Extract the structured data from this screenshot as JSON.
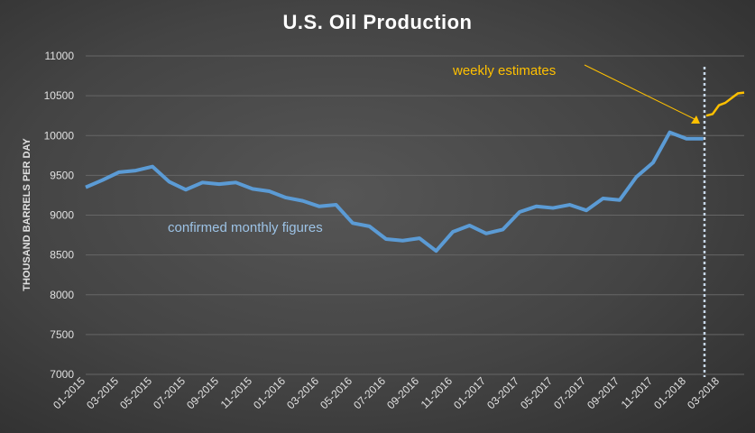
{
  "chart_data": {
    "type": "line",
    "title": "U.S. Oil Production",
    "ylabel": "THOUSAND BARRELS PER DAY",
    "xlabel": "",
    "ylim": [
      7000,
      11000
    ],
    "yticks": [
      7000,
      7500,
      8000,
      8500,
      9000,
      9500,
      10000,
      10500,
      11000
    ],
    "xtick_labels": [
      "01-2015",
      "03-2015",
      "05-2015",
      "07-2015",
      "09-2015",
      "11-2015",
      "01-2016",
      "03-2016",
      "05-2016",
      "07-2016",
      "09-2016",
      "11-2016",
      "01-2017",
      "03-2017",
      "05-2017",
      "07-2017",
      "09-2017",
      "11-2017",
      "01-2018",
      "03-2018"
    ],
    "grid": true,
    "series": [
      {
        "name": "confirmed monthly figures",
        "color": "#5b9bd5",
        "values": [
          9350,
          9440,
          9540,
          9560,
          9610,
          9420,
          9320,
          9410,
          9390,
          9410,
          9330,
          9300,
          9220,
          9180,
          9110,
          9130,
          8900,
          8860,
          8700,
          8680,
          8710,
          8550,
          8790,
          8870,
          8770,
          8820,
          9040,
          9110,
          9090,
          9130,
          9060,
          9210,
          9190,
          9480,
          9660,
          10040,
          9960,
          9960
        ]
      },
      {
        "name": "weekly estimates",
        "color": "#ffc000",
        "values": [
          10250,
          10270,
          10380,
          10410,
          10470,
          10530,
          10540
        ]
      }
    ],
    "annotations": {
      "monthly": "confirmed monthly figures",
      "weekly": "weekly estimates"
    }
  }
}
